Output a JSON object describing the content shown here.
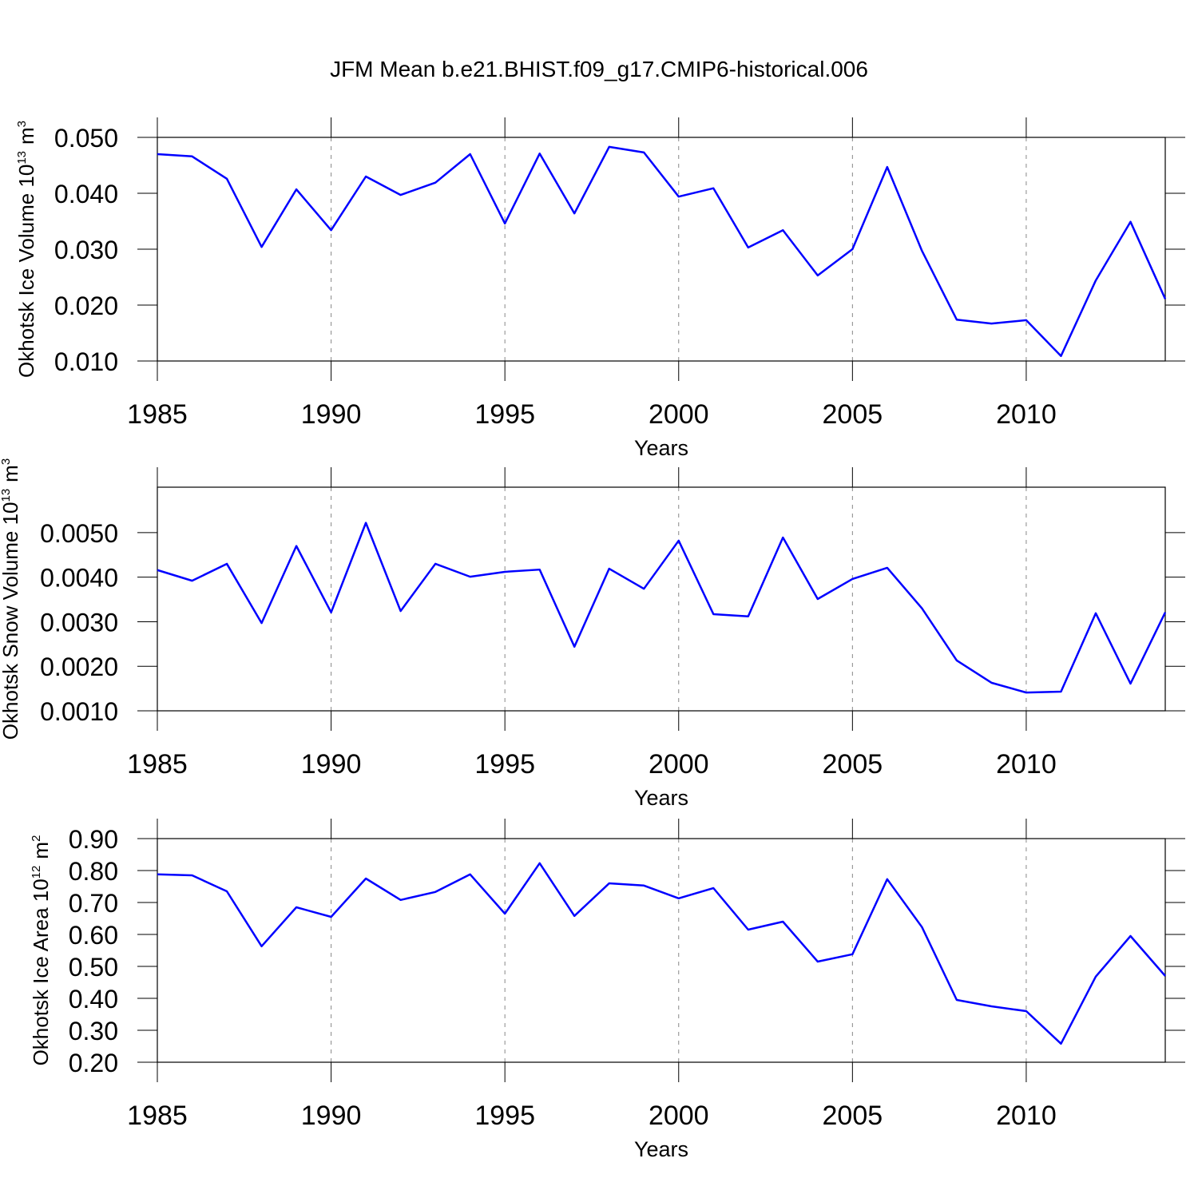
{
  "chart_data": [
    {
      "type": "line",
      "title": "JFM Mean b.e21.BHIST.f09_g17.CMIP6-historical.006",
      "xlabel": "Years",
      "ylabel": {
        "text": "Okhotsk Ice Volume 10",
        "power": "13",
        "unit": "m",
        "unit_power": "3"
      },
      "x": [
        1985,
        1986,
        1987,
        1988,
        1989,
        1990,
        1991,
        1992,
        1993,
        1994,
        1995,
        1996,
        1997,
        1998,
        1999,
        2000,
        2001,
        2002,
        2003,
        2004,
        2005,
        2006,
        2007,
        2008,
        2009,
        2010,
        2011,
        2012,
        2013,
        2014
      ],
      "series": [
        {
          "color": "#0000ff",
          "values": [
            0.047,
            0.0466,
            0.0426,
            0.0304,
            0.0407,
            0.0334,
            0.043,
            0.0397,
            0.0419,
            0.047,
            0.0346,
            0.0471,
            0.0364,
            0.0483,
            0.0473,
            0.0394,
            0.0409,
            0.0303,
            0.0334,
            0.0253,
            0.03,
            0.0447,
            0.0297,
            0.0174,
            0.0167,
            0.0173,
            0.0109,
            0.0244,
            0.0349,
            0.0211
          ]
        }
      ],
      "xlim": [
        1985,
        2014
      ],
      "xticks": [
        1985,
        1990,
        1995,
        2000,
        2005,
        2010
      ],
      "ylim": [
        0.01,
        0.05
      ],
      "yticks": [
        {
          "value": 0.01,
          "label": "0.010"
        },
        {
          "value": 0.02,
          "label": "0.020"
        },
        {
          "value": 0.03,
          "label": "0.030"
        },
        {
          "value": 0.04,
          "label": "0.040"
        },
        {
          "value": 0.05,
          "label": "0.050"
        }
      ],
      "grid": true
    },
    {
      "type": "line",
      "xlabel": "Years",
      "ylabel": {
        "text": "Okhotsk Snow Volume 10",
        "power": "13",
        "unit": "m",
        "unit_power": "3"
      },
      "x": [
        1985,
        1986,
        1987,
        1988,
        1989,
        1990,
        1991,
        1992,
        1993,
        1994,
        1995,
        1996,
        1997,
        1998,
        1999,
        2000,
        2001,
        2002,
        2003,
        2004,
        2005,
        2006,
        2007,
        2008,
        2009,
        2010,
        2011,
        2012,
        2013,
        2014
      ],
      "series": [
        {
          "color": "#0000ff",
          "values": [
            0.00416,
            0.00392,
            0.0043,
            0.00297,
            0.0047,
            0.00321,
            0.00522,
            0.00324,
            0.0043,
            0.00401,
            0.00412,
            0.00417,
            0.00244,
            0.00419,
            0.00374,
            0.00482,
            0.00317,
            0.00312,
            0.00489,
            0.00351,
            0.00396,
            0.00421,
            0.0033,
            0.00213,
            0.00163,
            0.00141,
            0.00143,
            0.00319,
            0.00161,
            0.00321
          ]
        }
      ],
      "xlim": [
        1985,
        2014
      ],
      "xticks": [
        1985,
        1990,
        1995,
        2000,
        2005,
        2010
      ],
      "ylim": [
        0.001,
        0.00602
      ],
      "yticks": [
        {
          "value": 0.001,
          "label": "0.0010"
        },
        {
          "value": 0.002,
          "label": "0.0020"
        },
        {
          "value": 0.003,
          "label": "0.0030"
        },
        {
          "value": 0.004,
          "label": "0.0040"
        },
        {
          "value": 0.005,
          "label": "0.0050"
        }
      ],
      "grid": true
    },
    {
      "type": "line",
      "xlabel": "Years",
      "ylabel": {
        "text": "Okhotsk Ice Area 10",
        "power": "12",
        "unit": "m",
        "unit_power": "2"
      },
      "x": [
        1985,
        1986,
        1987,
        1988,
        1989,
        1990,
        1991,
        1992,
        1993,
        1994,
        1995,
        1996,
        1997,
        1998,
        1999,
        2000,
        2001,
        2002,
        2003,
        2004,
        2005,
        2006,
        2007,
        2008,
        2009,
        2010,
        2011,
        2012,
        2013,
        2014
      ],
      "series": [
        {
          "color": "#0000ff",
          "values": [
            0.788,
            0.785,
            0.735,
            0.563,
            0.685,
            0.655,
            0.775,
            0.708,
            0.733,
            0.788,
            0.665,
            0.823,
            0.658,
            0.76,
            0.753,
            0.713,
            0.745,
            0.615,
            0.64,
            0.515,
            0.538,
            0.773,
            0.623,
            0.395,
            0.375,
            0.36,
            0.258,
            0.468,
            0.595,
            0.47
          ]
        }
      ],
      "xlim": [
        1985,
        2014
      ],
      "xticks": [
        1985,
        1990,
        1995,
        2000,
        2005,
        2010
      ],
      "ylim": [
        0.2,
        0.9
      ],
      "yticks": [
        {
          "value": 0.2,
          "label": "0.20"
        },
        {
          "value": 0.3,
          "label": "0.30"
        },
        {
          "value": 0.4,
          "label": "0.40"
        },
        {
          "value": 0.5,
          "label": "0.50"
        },
        {
          "value": 0.6,
          "label": "0.60"
        },
        {
          "value": 0.7,
          "label": "0.70"
        },
        {
          "value": 0.8,
          "label": "0.80"
        },
        {
          "value": 0.9,
          "label": "0.90"
        }
      ],
      "grid": true
    }
  ]
}
